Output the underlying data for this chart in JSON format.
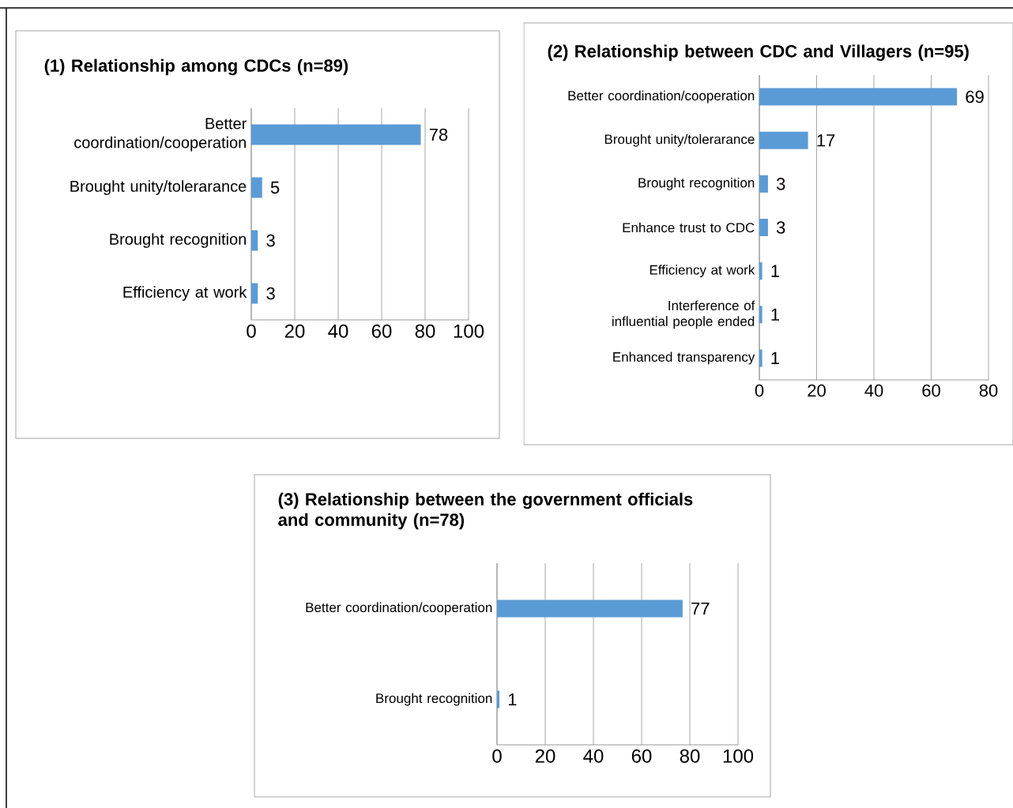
{
  "chart_data": [
    {
      "type": "bar",
      "orientation": "horizontal",
      "title": "(1) Relationship among CDCs (n=89)",
      "categories": [
        "Better coordination/cooperation",
        "Brought unity/tolerarance",
        "Brought recognition",
        "Efficiency at work"
      ],
      "values": [
        78,
        5,
        3,
        3
      ],
      "color": "#5b9bd5",
      "xlim": [
        0,
        100
      ],
      "xticks": [
        0,
        20,
        40,
        60,
        80,
        100
      ],
      "grid": "x",
      "data_labels": true
    },
    {
      "type": "bar",
      "orientation": "horizontal",
      "title": "(2) Relationship between CDC and Villagers (n=95)",
      "categories": [
        "Better coordination/cooperation",
        "Brought unity/tolerarance",
        "Brought recognition",
        "Enhance trust to CDC",
        "Efficiency at work",
        "Interference of influential people ended",
        "Enhanced transparency"
      ],
      "values": [
        69,
        17,
        3,
        3,
        1,
        1,
        1
      ],
      "color": "#5b9bd5",
      "xlim": [
        0,
        80
      ],
      "xticks": [
        0,
        20,
        40,
        60,
        80
      ],
      "grid": "x",
      "data_labels": true
    },
    {
      "type": "bar",
      "orientation": "horizontal",
      "title": "(3) Relationship between the government officials and community (n=78)",
      "categories": [
        "Better coordination/cooperation",
        "Brought recognition"
      ],
      "values": [
        77,
        1
      ],
      "color": "#5b9bd5",
      "xlim": [
        0,
        100
      ],
      "xticks": [
        0,
        20,
        40,
        60,
        80,
        100
      ],
      "grid": "x",
      "data_labels": true
    }
  ]
}
